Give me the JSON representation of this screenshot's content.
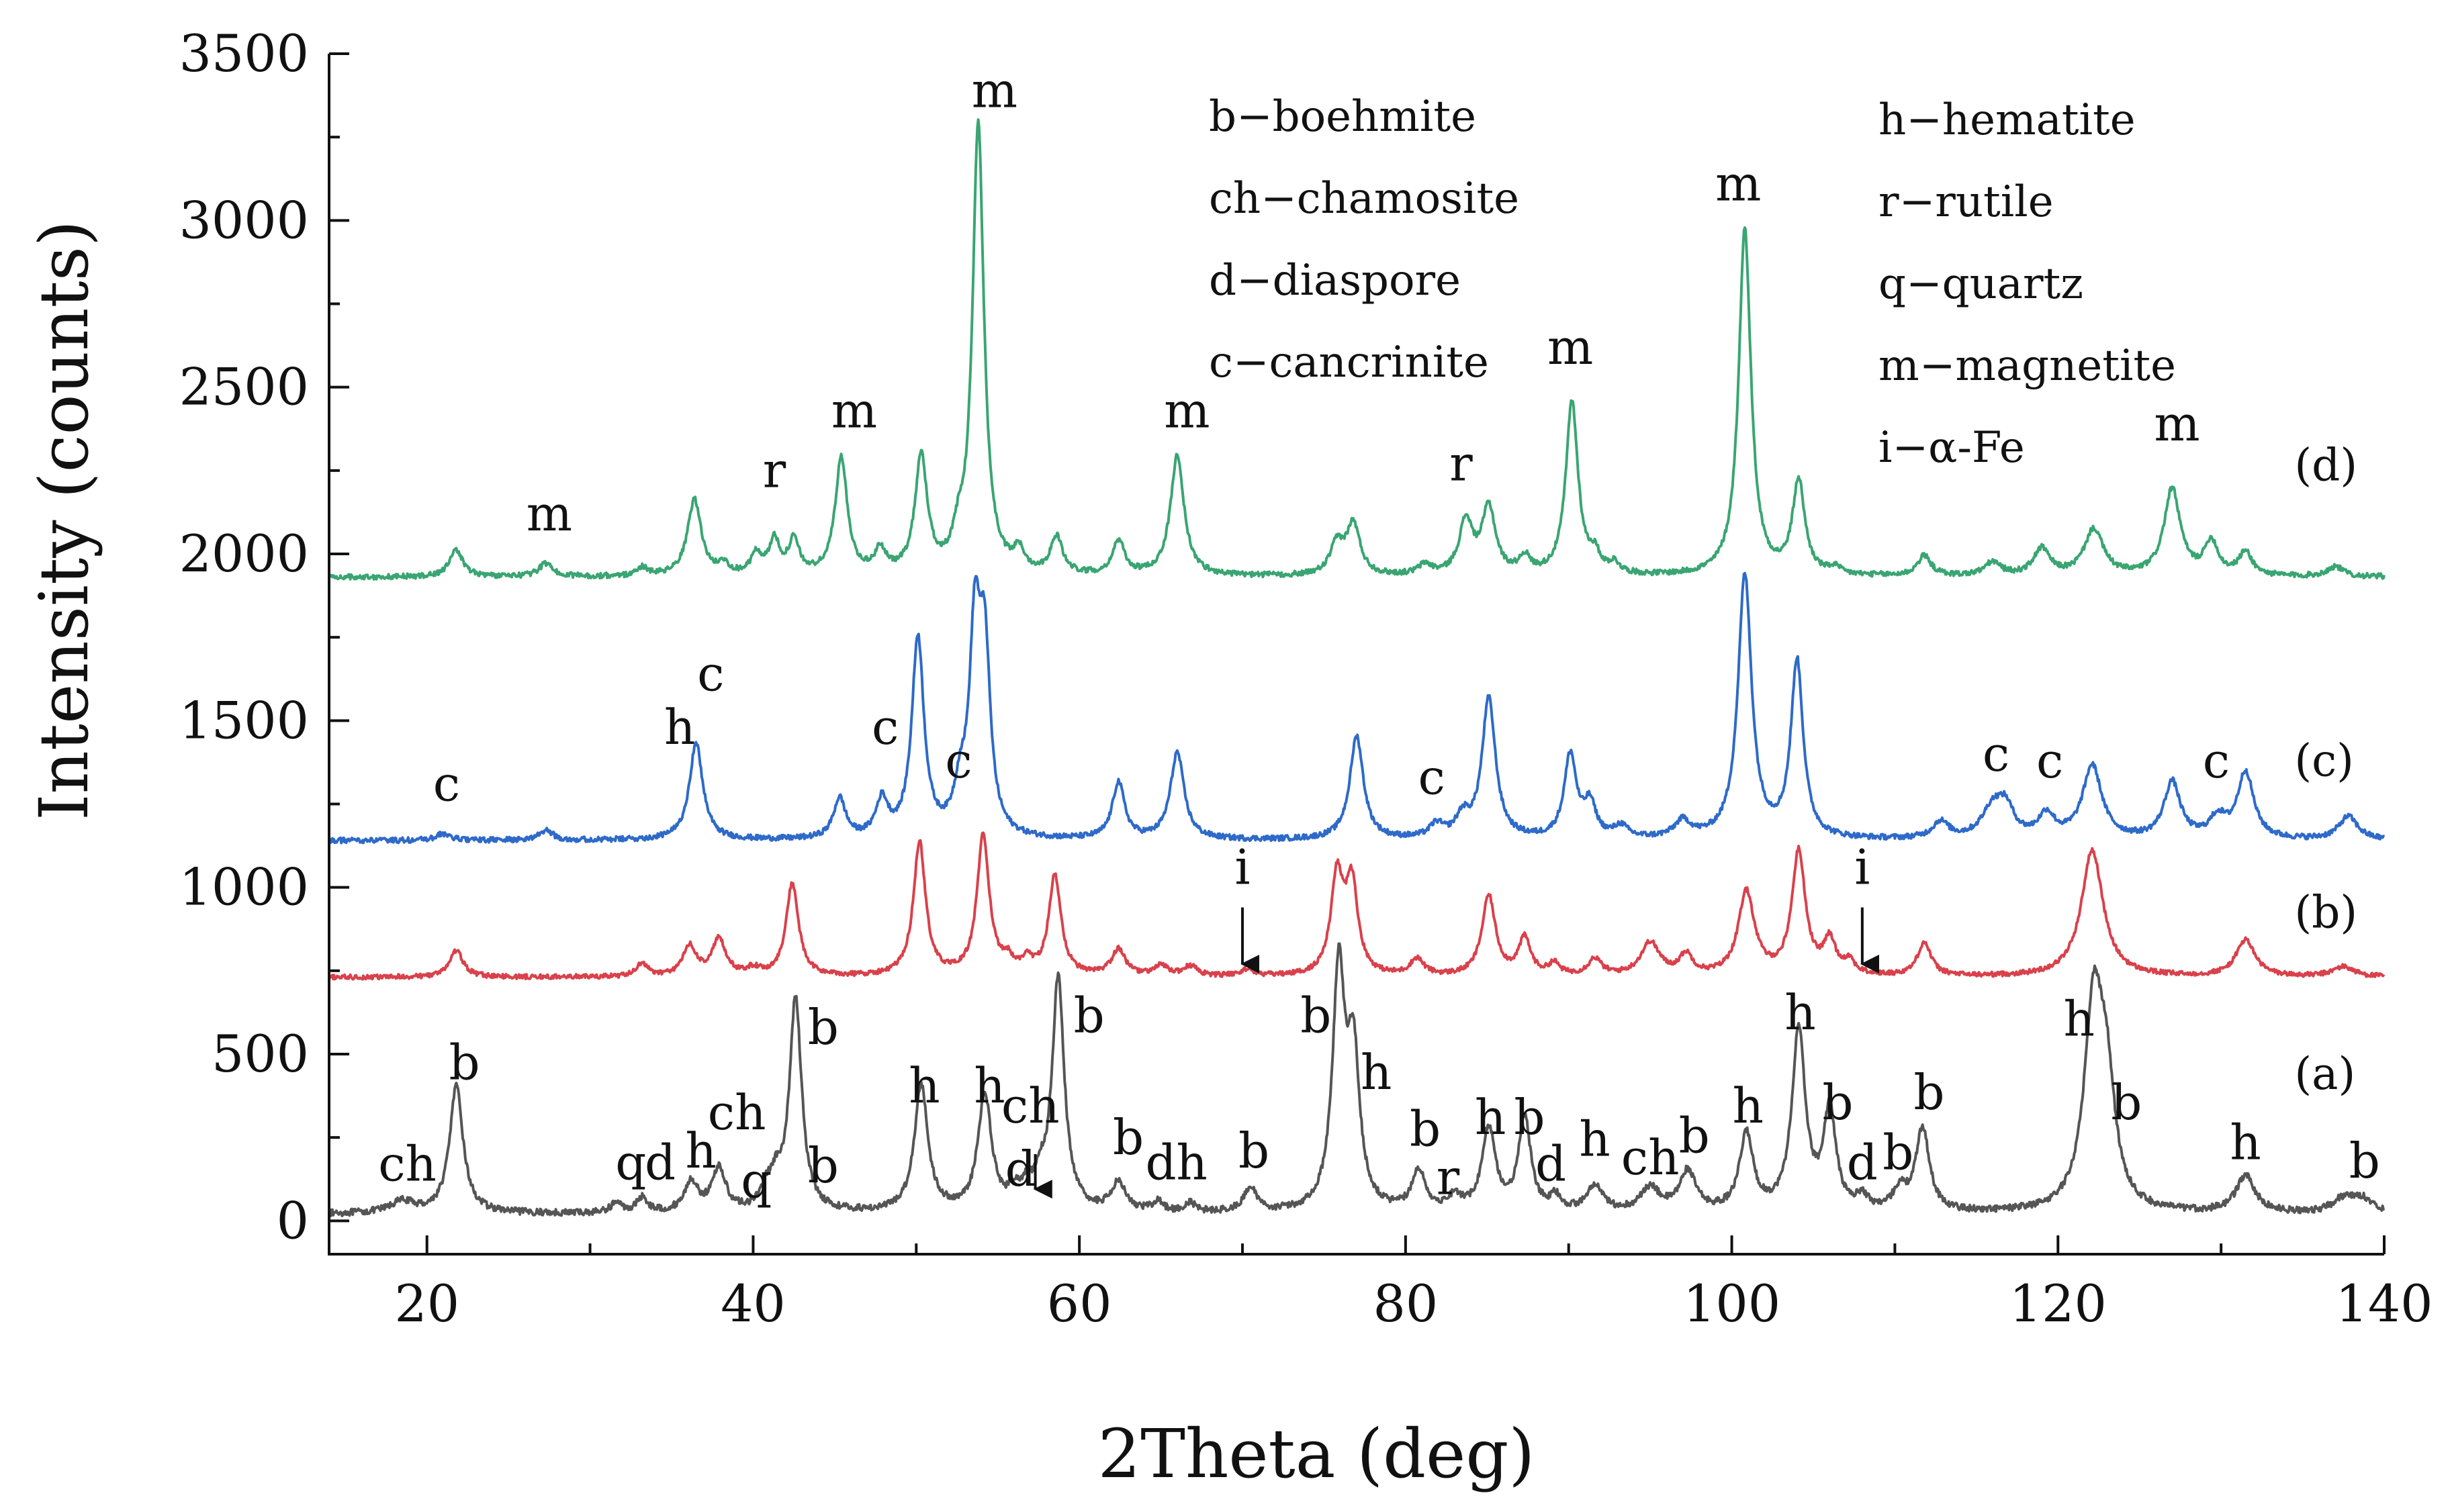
{
  "chart_data": {
    "type": "line",
    "xlabel": "2Theta (deg)",
    "ylabel": "Intensity (counts)",
    "xlim": [
      14,
      140
    ],
    "ylim": [
      -100,
      3500
    ],
    "xticks": [
      20,
      40,
      60,
      80,
      100,
      120,
      140
    ],
    "yticks": [
      0,
      500,
      1000,
      1500,
      2000,
      2500,
      3000,
      3500
    ],
    "grid": false,
    "legend_entries": [
      "b−boehmite",
      "ch−chamosite",
      "d−diaspore",
      "c−cancrinite",
      "h−hematite",
      "r−rutile",
      "q−quartz",
      "m−magnetite",
      "i−α-Fe"
    ],
    "series": [
      {
        "name": "(a)",
        "color": "#555555",
        "baseline": 20,
        "noise": 10,
        "peaks": [
          [
            18.5,
            35,
            0.9
          ],
          [
            21.8,
            380,
            0.5
          ],
          [
            31.6,
            30,
            0.4
          ],
          [
            33.2,
            45,
            0.4
          ],
          [
            36.2,
            90,
            0.5
          ],
          [
            37.9,
            130,
            0.5
          ],
          [
            40.8,
            55,
            0.4
          ],
          [
            41.4,
            75,
            0.4
          ],
          [
            42.6,
            640,
            0.45
          ],
          [
            50.3,
            380,
            0.5
          ],
          [
            54.2,
            350,
            0.5
          ],
          [
            56.0,
            45,
            0.4
          ],
          [
            56.8,
            55,
            0.4
          ],
          [
            57.6,
            70,
            0.4
          ],
          [
            58.7,
            700,
            0.45
          ],
          [
            62.4,
            90,
            0.5
          ],
          [
            64.8,
            30,
            0.4
          ],
          [
            66.8,
            25,
            0.4
          ],
          [
            70.5,
            70,
            0.5
          ],
          [
            75.9,
            710,
            0.45
          ],
          [
            76.8,
            450,
            0.45
          ],
          [
            80.8,
            120,
            0.5
          ],
          [
            83.0,
            40,
            0.5
          ],
          [
            85.1,
            250,
            0.5
          ],
          [
            87.3,
            280,
            0.45
          ],
          [
            89.2,
            40,
            0.4
          ],
          [
            91.6,
            75,
            0.6
          ],
          [
            95.0,
            70,
            0.7
          ],
          [
            97.3,
            120,
            0.6
          ],
          [
            100.9,
            230,
            0.5
          ],
          [
            104.1,
            540,
            0.5
          ],
          [
            106.0,
            300,
            0.45
          ],
          [
            108.0,
            40,
            0.4
          ],
          [
            110.3,
            60,
            0.5
          ],
          [
            111.7,
            250,
            0.5
          ],
          [
            122.2,
            620,
            0.7
          ],
          [
            123.0,
            300,
            0.6
          ],
          [
            131.5,
            110,
            0.7
          ],
          [
            137.5,
            40,
            0.8
          ],
          [
            138.7,
            40,
            0.8
          ]
        ]
      },
      {
        "name": "(b)",
        "color": "#d9414b",
        "baseline": 730,
        "noise": 7,
        "peaks": [
          [
            21.8,
            80,
            0.5
          ],
          [
            33.2,
            40,
            0.4
          ],
          [
            36.1,
            90,
            0.5
          ],
          [
            37.9,
            110,
            0.5
          ],
          [
            40.0,
            20,
            0.5
          ],
          [
            42.4,
            280,
            0.45
          ],
          [
            50.2,
            400,
            0.45
          ],
          [
            54.1,
            420,
            0.45
          ],
          [
            55.6,
            40,
            0.4
          ],
          [
            56.8,
            40,
            0.4
          ],
          [
            58.5,
            300,
            0.45
          ],
          [
            62.4,
            80,
            0.5
          ],
          [
            65.0,
            30,
            0.5
          ],
          [
            66.8,
            30,
            0.5
          ],
          [
            70.3,
            20,
            0.5
          ],
          [
            75.8,
            290,
            0.45
          ],
          [
            76.7,
            270,
            0.45
          ],
          [
            80.7,
            50,
            0.5
          ],
          [
            85.1,
            240,
            0.5
          ],
          [
            87.3,
            110,
            0.45
          ],
          [
            89.1,
            35,
            0.4
          ],
          [
            91.6,
            50,
            0.5
          ],
          [
            95.0,
            100,
            0.7
          ],
          [
            97.2,
            60,
            0.5
          ],
          [
            100.9,
            250,
            0.6
          ],
          [
            104.1,
            370,
            0.5
          ],
          [
            106.0,
            100,
            0.45
          ],
          [
            107.2,
            40,
            0.4
          ],
          [
            111.8,
            100,
            0.5
          ],
          [
            122.1,
            380,
            0.8
          ],
          [
            131.5,
            110,
            0.7
          ],
          [
            137.5,
            30,
            0.8
          ]
        ]
      },
      {
        "name": "(c)",
        "color": "#2e6ac9",
        "baseline": 1140,
        "noise": 8,
        "peaks": [
          [
            21.0,
            20,
            0.5
          ],
          [
            27.3,
            30,
            0.5
          ],
          [
            36.5,
            290,
            0.5
          ],
          [
            45.3,
            120,
            0.45
          ],
          [
            47.9,
            110,
            0.45
          ],
          [
            50.1,
            600,
            0.45
          ],
          [
            52.7,
            120,
            0.45
          ],
          [
            53.6,
            590,
            0.4
          ],
          [
            54.2,
            520,
            0.4
          ],
          [
            62.4,
            170,
            0.45
          ],
          [
            66.0,
            260,
            0.5
          ],
          [
            77.0,
            310,
            0.5
          ],
          [
            81.9,
            40,
            0.5
          ],
          [
            83.5,
            60,
            0.5
          ],
          [
            85.1,
            420,
            0.5
          ],
          [
            90.1,
            250,
            0.45
          ],
          [
            91.3,
            100,
            0.45
          ],
          [
            93.2,
            35,
            0.5
          ],
          [
            97.0,
            50,
            0.6
          ],
          [
            100.8,
            790,
            0.5
          ],
          [
            104.0,
            530,
            0.45
          ],
          [
            112.8,
            50,
            0.6
          ],
          [
            116.0,
            90,
            0.8
          ],
          [
            116.8,
            80,
            0.6
          ],
          [
            119.3,
            70,
            0.6
          ],
          [
            122.1,
            220,
            0.7
          ],
          [
            127.0,
            170,
            0.6
          ],
          [
            129.8,
            60,
            0.6
          ],
          [
            131.5,
            200,
            0.6
          ],
          [
            137.8,
            70,
            0.7
          ]
        ]
      },
      {
        "name": "(d)",
        "color": "#3aa572",
        "baseline": 1930,
        "noise": 8,
        "peaks": [
          [
            21.8,
            80,
            0.5
          ],
          [
            27.3,
            40,
            0.5
          ],
          [
            33.2,
            25,
            0.4
          ],
          [
            36.4,
            230,
            0.5
          ],
          [
            38.2,
            30,
            0.4
          ],
          [
            40.2,
            60,
            0.4
          ],
          [
            41.3,
            100,
            0.4
          ],
          [
            42.5,
            100,
            0.4
          ],
          [
            45.4,
            350,
            0.45
          ],
          [
            47.8,
            70,
            0.4
          ],
          [
            50.3,
            350,
            0.45
          ],
          [
            52.6,
            80,
            0.4
          ],
          [
            53.8,
            1350,
            0.42
          ],
          [
            56.3,
            60,
            0.4
          ],
          [
            58.6,
            110,
            0.45
          ],
          [
            62.4,
            100,
            0.45
          ],
          [
            66.0,
            360,
            0.5
          ],
          [
            75.8,
            90,
            0.5
          ],
          [
            76.8,
            150,
            0.5
          ],
          [
            81.2,
            30,
            0.5
          ],
          [
            83.7,
            160,
            0.5
          ],
          [
            85.1,
            200,
            0.5
          ],
          [
            87.3,
            50,
            0.4
          ],
          [
            90.2,
            520,
            0.45
          ],
          [
            91.6,
            50,
            0.4
          ],
          [
            92.8,
            30,
            0.4
          ],
          [
            100.8,
            1040,
            0.45
          ],
          [
            104.1,
            280,
            0.45
          ],
          [
            106.3,
            20,
            0.4
          ],
          [
            111.8,
            60,
            0.5
          ],
          [
            116.0,
            40,
            0.6
          ],
          [
            119.0,
            80,
            0.6
          ],
          [
            122.2,
            140,
            0.7
          ],
          [
            127.0,
            260,
            0.6
          ],
          [
            129.4,
            100,
            0.5
          ],
          [
            131.5,
            70,
            0.5
          ],
          [
            137.0,
            30,
            0.6
          ]
        ]
      }
    ],
    "series_tags": [
      {
        "text": "(a)",
        "x": 134.5,
        "y": 395
      },
      {
        "text": "(b)",
        "x": 134.5,
        "y": 880
      },
      {
        "text": "(c)",
        "x": 134.5,
        "y": 1335
      },
      {
        "text": "(d)",
        "x": 134.5,
        "y": 2220
      }
    ],
    "peak_labels": [
      {
        "text": "ch",
        "x": 18.8,
        "y": 120
      },
      {
        "text": "b",
        "x": 22.3,
        "y": 425
      },
      {
        "text": "q",
        "x": 32.5,
        "y": 125
      },
      {
        "text": "d",
        "x": 34.3,
        "y": 125
      },
      {
        "text": "h",
        "x": 36.8,
        "y": 160
      },
      {
        "text": "ch",
        "x": 39.0,
        "y": 275
      },
      {
        "text": "q",
        "x": 40.2,
        "y": 70
      },
      {
        "text": "b",
        "x": 44.3,
        "y": 530
      },
      {
        "text": "b",
        "x": 44.3,
        "y": 115
      },
      {
        "text": "h",
        "x": 50.5,
        "y": 355
      },
      {
        "text": "h",
        "x": 54.5,
        "y": 355
      },
      {
        "text": "ch",
        "x": 57.0,
        "y": 295
      },
      {
        "text": "d",
        "x": 56.4,
        "y": 105
      },
      {
        "text": "b",
        "x": 60.6,
        "y": 565
      },
      {
        "text": "b",
        "x": 63.0,
        "y": 200
      },
      {
        "text": "d",
        "x": 65.0,
        "y": 125
      },
      {
        "text": "h",
        "x": 66.9,
        "y": 125
      },
      {
        "text": "b",
        "x": 70.7,
        "y": 160
      },
      {
        "text": "b",
        "x": 74.5,
        "y": 565
      },
      {
        "text": "h",
        "x": 78.2,
        "y": 395
      },
      {
        "text": "b",
        "x": 81.2,
        "y": 225
      },
      {
        "text": "r",
        "x": 82.6,
        "y": 80
      },
      {
        "text": "h",
        "x": 85.2,
        "y": 260
      },
      {
        "text": "b",
        "x": 87.6,
        "y": 260
      },
      {
        "text": "d",
        "x": 88.9,
        "y": 120
      },
      {
        "text": "h",
        "x": 91.6,
        "y": 195
      },
      {
        "text": "ch",
        "x": 95.0,
        "y": 140
      },
      {
        "text": "b",
        "x": 97.7,
        "y": 205
      },
      {
        "text": "h",
        "x": 101.0,
        "y": 295
      },
      {
        "text": "h",
        "x": 104.2,
        "y": 575
      },
      {
        "text": "b",
        "x": 106.5,
        "y": 305
      },
      {
        "text": "d",
        "x": 108.0,
        "y": 125
      },
      {
        "text": "b",
        "x": 110.2,
        "y": 155
      },
      {
        "text": "b",
        "x": 112.1,
        "y": 335
      },
      {
        "text": "h",
        "x": 121.3,
        "y": 555
      },
      {
        "text": "b",
        "x": 124.2,
        "y": 305
      },
      {
        "text": "h",
        "x": 131.5,
        "y": 185
      },
      {
        "text": "b",
        "x": 138.8,
        "y": 130
      },
      {
        "text": "c",
        "x": 21.2,
        "y": 1260
      },
      {
        "text": "h",
        "x": 35.5,
        "y": 1430
      },
      {
        "text": "c",
        "x": 37.4,
        "y": 1590
      },
      {
        "text": "c",
        "x": 48.1,
        "y": 1430
      },
      {
        "text": "c",
        "x": 52.6,
        "y": 1330
      },
      {
        "text": "c",
        "x": 81.6,
        "y": 1280
      },
      {
        "text": "c",
        "x": 116.2,
        "y": 1350
      },
      {
        "text": "c",
        "x": 119.5,
        "y": 1330
      },
      {
        "text": "c",
        "x": 129.7,
        "y": 1330
      },
      {
        "text": "i",
        "x": 70.0,
        "y": 1010
      },
      {
        "text": "i",
        "x": 108.0,
        "y": 1010
      },
      {
        "text": "m",
        "x": 27.5,
        "y": 2070
      },
      {
        "text": "r",
        "x": 41.3,
        "y": 2200
      },
      {
        "text": "m",
        "x": 46.2,
        "y": 2380
      },
      {
        "text": "m",
        "x": 54.8,
        "y": 3340
      },
      {
        "text": "m",
        "x": 66.6,
        "y": 2380
      },
      {
        "text": "r",
        "x": 83.4,
        "y": 2220
      },
      {
        "text": "m",
        "x": 90.1,
        "y": 2570
      },
      {
        "text": "m",
        "x": 100.4,
        "y": 3060
      },
      {
        "text": "m",
        "x": 127.3,
        "y": 2340
      }
    ],
    "arrows": [
      {
        "x": 70.0,
        "y_top": 940,
        "y_bottom": 770
      },
      {
        "x": 108.0,
        "y_top": 940,
        "y_bottom": 770
      },
      {
        "x": 57.3,
        "y_top": 200,
        "y_bottom": 95
      }
    ]
  }
}
